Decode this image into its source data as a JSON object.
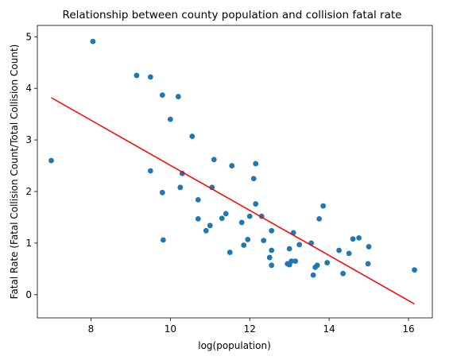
{
  "chart_data": {
    "type": "scatter",
    "title": "Relationship between county population and collision fatal rate",
    "xlabel": "log(population)",
    "ylabel": "Fatal Rate (Fatal Collision Count/Total Collision Count)",
    "xlim": [
      6.65,
      16.6
    ],
    "ylim": [
      -0.45,
      5.22
    ],
    "xticks": [
      8,
      10,
      12,
      14,
      16
    ],
    "yticks": [
      0,
      1,
      2,
      3,
      4,
      5
    ],
    "grid": false,
    "colors": {
      "points": "#1f77b4",
      "fit_line": "#ff0000"
    },
    "points": [
      [
        7.0,
        2.6
      ],
      [
        8.05,
        4.91
      ],
      [
        9.15,
        4.25
      ],
      [
        9.5,
        4.22
      ],
      [
        9.8,
        3.87
      ],
      [
        10.2,
        3.84
      ],
      [
        10.0,
        3.4
      ],
      [
        10.55,
        3.07
      ],
      [
        11.1,
        2.62
      ],
      [
        11.55,
        2.5
      ],
      [
        12.15,
        2.54
      ],
      [
        12.1,
        2.25
      ],
      [
        9.5,
        2.4
      ],
      [
        10.3,
        2.35
      ],
      [
        9.8,
        1.98
      ],
      [
        10.25,
        2.08
      ],
      [
        11.05,
        2.08
      ],
      [
        10.7,
        1.84
      ],
      [
        12.15,
        1.76
      ],
      [
        12.3,
        1.52
      ],
      [
        12.0,
        1.52
      ],
      [
        11.4,
        1.57
      ],
      [
        11.3,
        1.48
      ],
      [
        10.7,
        1.47
      ],
      [
        11.0,
        1.34
      ],
      [
        10.9,
        1.24
      ],
      [
        11.8,
        1.4
      ],
      [
        12.55,
        1.24
      ],
      [
        13.1,
        1.2
      ],
      [
        13.75,
        1.47
      ],
      [
        13.85,
        1.72
      ],
      [
        9.82,
        1.06
      ],
      [
        11.5,
        0.82
      ],
      [
        11.85,
        0.96
      ],
      [
        11.95,
        1.07
      ],
      [
        12.35,
        1.05
      ],
      [
        12.55,
        0.86
      ],
      [
        12.5,
        0.72
      ],
      [
        12.55,
        0.57
      ],
      [
        12.95,
        0.6
      ],
      [
        13.0,
        0.58
      ],
      [
        13.0,
        0.89
      ],
      [
        13.05,
        0.65
      ],
      [
        13.15,
        0.65
      ],
      [
        13.25,
        0.97
      ],
      [
        13.55,
        1.0
      ],
      [
        13.65,
        0.53
      ],
      [
        13.7,
        0.57
      ],
      [
        13.95,
        0.62
      ],
      [
        13.6,
        0.38
      ],
      [
        14.25,
        0.86
      ],
      [
        14.35,
        0.41
      ],
      [
        14.5,
        0.8
      ],
      [
        14.6,
        1.08
      ],
      [
        14.75,
        1.1
      ],
      [
        15.0,
        0.93
      ],
      [
        14.98,
        0.6
      ],
      [
        16.15,
        0.48
      ]
    ],
    "fit_line": {
      "x": [
        7.0,
        16.15
      ],
      "y": [
        3.82,
        -0.18
      ]
    }
  }
}
